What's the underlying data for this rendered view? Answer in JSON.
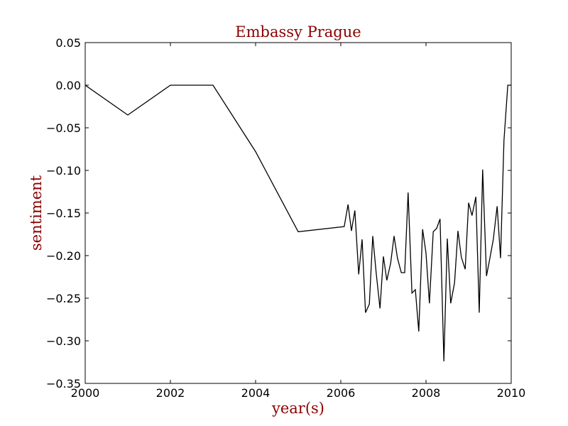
{
  "chart_data": {
    "type": "line",
    "title": "Embassy Prague",
    "xlabel": "year(s)",
    "ylabel": "sentiment",
    "xlim": [
      2000,
      2010
    ],
    "ylim": [
      -0.35,
      0.05
    ],
    "grid": false,
    "x_ticks": [
      2000,
      2002,
      2004,
      2006,
      2008,
      2010
    ],
    "x_tick_labels": [
      "2000",
      "2002",
      "2004",
      "2006",
      "2008",
      "2010"
    ],
    "y_ticks": [
      0.05,
      0.0,
      -0.05,
      -0.1,
      -0.15,
      -0.2,
      -0.25,
      -0.3,
      -0.35
    ],
    "y_tick_labels": [
      "0.05",
      "0.00",
      "−0.05",
      "−0.10",
      "−0.15",
      "−0.20",
      "−0.25",
      "−0.30",
      "−0.35"
    ],
    "line_color": "#000000",
    "series": [
      {
        "x": [
          2000.0,
          2001.0,
          2002.0,
          2003.0,
          2004.0,
          2005.0,
          2006.08,
          2006.17,
          2006.25,
          2006.33,
          2006.42,
          2006.5,
          2006.58,
          2006.67,
          2006.75,
          2006.83,
          2006.92,
          2007.0,
          2007.08,
          2007.17,
          2007.25,
          2007.33,
          2007.42,
          2007.5,
          2007.58,
          2007.67,
          2007.75,
          2007.83,
          2007.92,
          2008.0,
          2008.08,
          2008.17,
          2008.25,
          2008.33,
          2008.42,
          2008.5,
          2008.58,
          2008.67,
          2008.75,
          2008.83,
          2008.92,
          2009.0,
          2009.08,
          2009.17,
          2009.25,
          2009.33,
          2009.42,
          2009.5,
          2009.58,
          2009.67,
          2009.75,
          2009.83,
          2009.92,
          2010.0
        ],
        "y": [
          0.0,
          -0.035,
          0.0,
          0.0,
          -0.078,
          -0.172,
          -0.166,
          -0.14,
          -0.171,
          -0.147,
          -0.222,
          -0.181,
          -0.267,
          -0.257,
          -0.177,
          -0.22,
          -0.262,
          -0.201,
          -0.229,
          -0.209,
          -0.177,
          -0.203,
          -0.22,
          -0.22,
          -0.126,
          -0.244,
          -0.24,
          -0.289,
          -0.169,
          -0.197,
          -0.256,
          -0.172,
          -0.168,
          -0.157,
          -0.324,
          -0.18,
          -0.256,
          -0.232,
          -0.171,
          -0.202,
          -0.216,
          -0.138,
          -0.153,
          -0.131,
          -0.267,
          -0.099,
          -0.224,
          -0.203,
          -0.181,
          -0.142,
          -0.203,
          -0.065,
          0.0,
          0.0
        ]
      }
    ]
  }
}
